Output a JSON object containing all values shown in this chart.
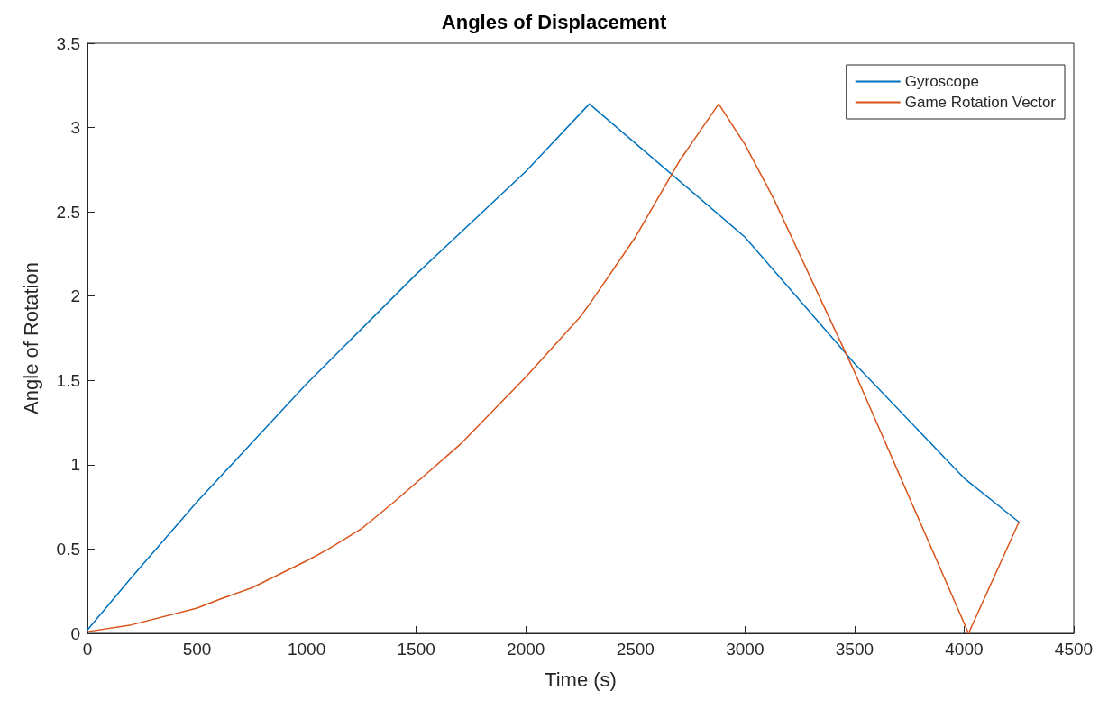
{
  "chart_data": {
    "type": "line",
    "title": "Angles of Displacement",
    "xlabel": "Time (s)",
    "ylabel": "Angle of Rotation",
    "series": [
      {
        "name": "Gyroscope",
        "color": "#0072bd",
        "x": [
          0,
          200,
          500,
          1000,
          1500,
          2000,
          2290,
          3000,
          3500,
          4000,
          4250
        ],
        "values": [
          0.02,
          0.33,
          0.78,
          1.48,
          2.13,
          2.74,
          3.14,
          2.35,
          1.6,
          0.92,
          0.66
        ]
      },
      {
        "name": "Game Rotation Vector",
        "color": "#d95319",
        "x": [
          0,
          200,
          500,
          600,
          750,
          1000,
          1100,
          1250,
          1400,
          1550,
          1700,
          2000,
          2250,
          2300,
          2500,
          2700,
          2880,
          3000,
          3130,
          3500,
          4020,
          4250
        ],
        "values": [
          0.01,
          0.05,
          0.15,
          0.2,
          0.27,
          0.43,
          0.5,
          0.62,
          0.78,
          0.95,
          1.12,
          1.52,
          1.88,
          1.97,
          2.35,
          2.8,
          3.14,
          2.9,
          2.58,
          1.55,
          0.0,
          0.66
        ]
      }
    ],
    "xlim": [
      0,
      4500
    ],
    "xticks": [
      0,
      500,
      1000,
      1500,
      2000,
      2500,
      3000,
      3500,
      4000,
      4500
    ],
    "ylim": [
      0,
      3.5
    ],
    "yticks": [
      0,
      0.5,
      1,
      1.5,
      2,
      2.5,
      3,
      3.5
    ],
    "grid": false,
    "legend": "top right",
    "marker": "none",
    "line_style": "solid"
  }
}
